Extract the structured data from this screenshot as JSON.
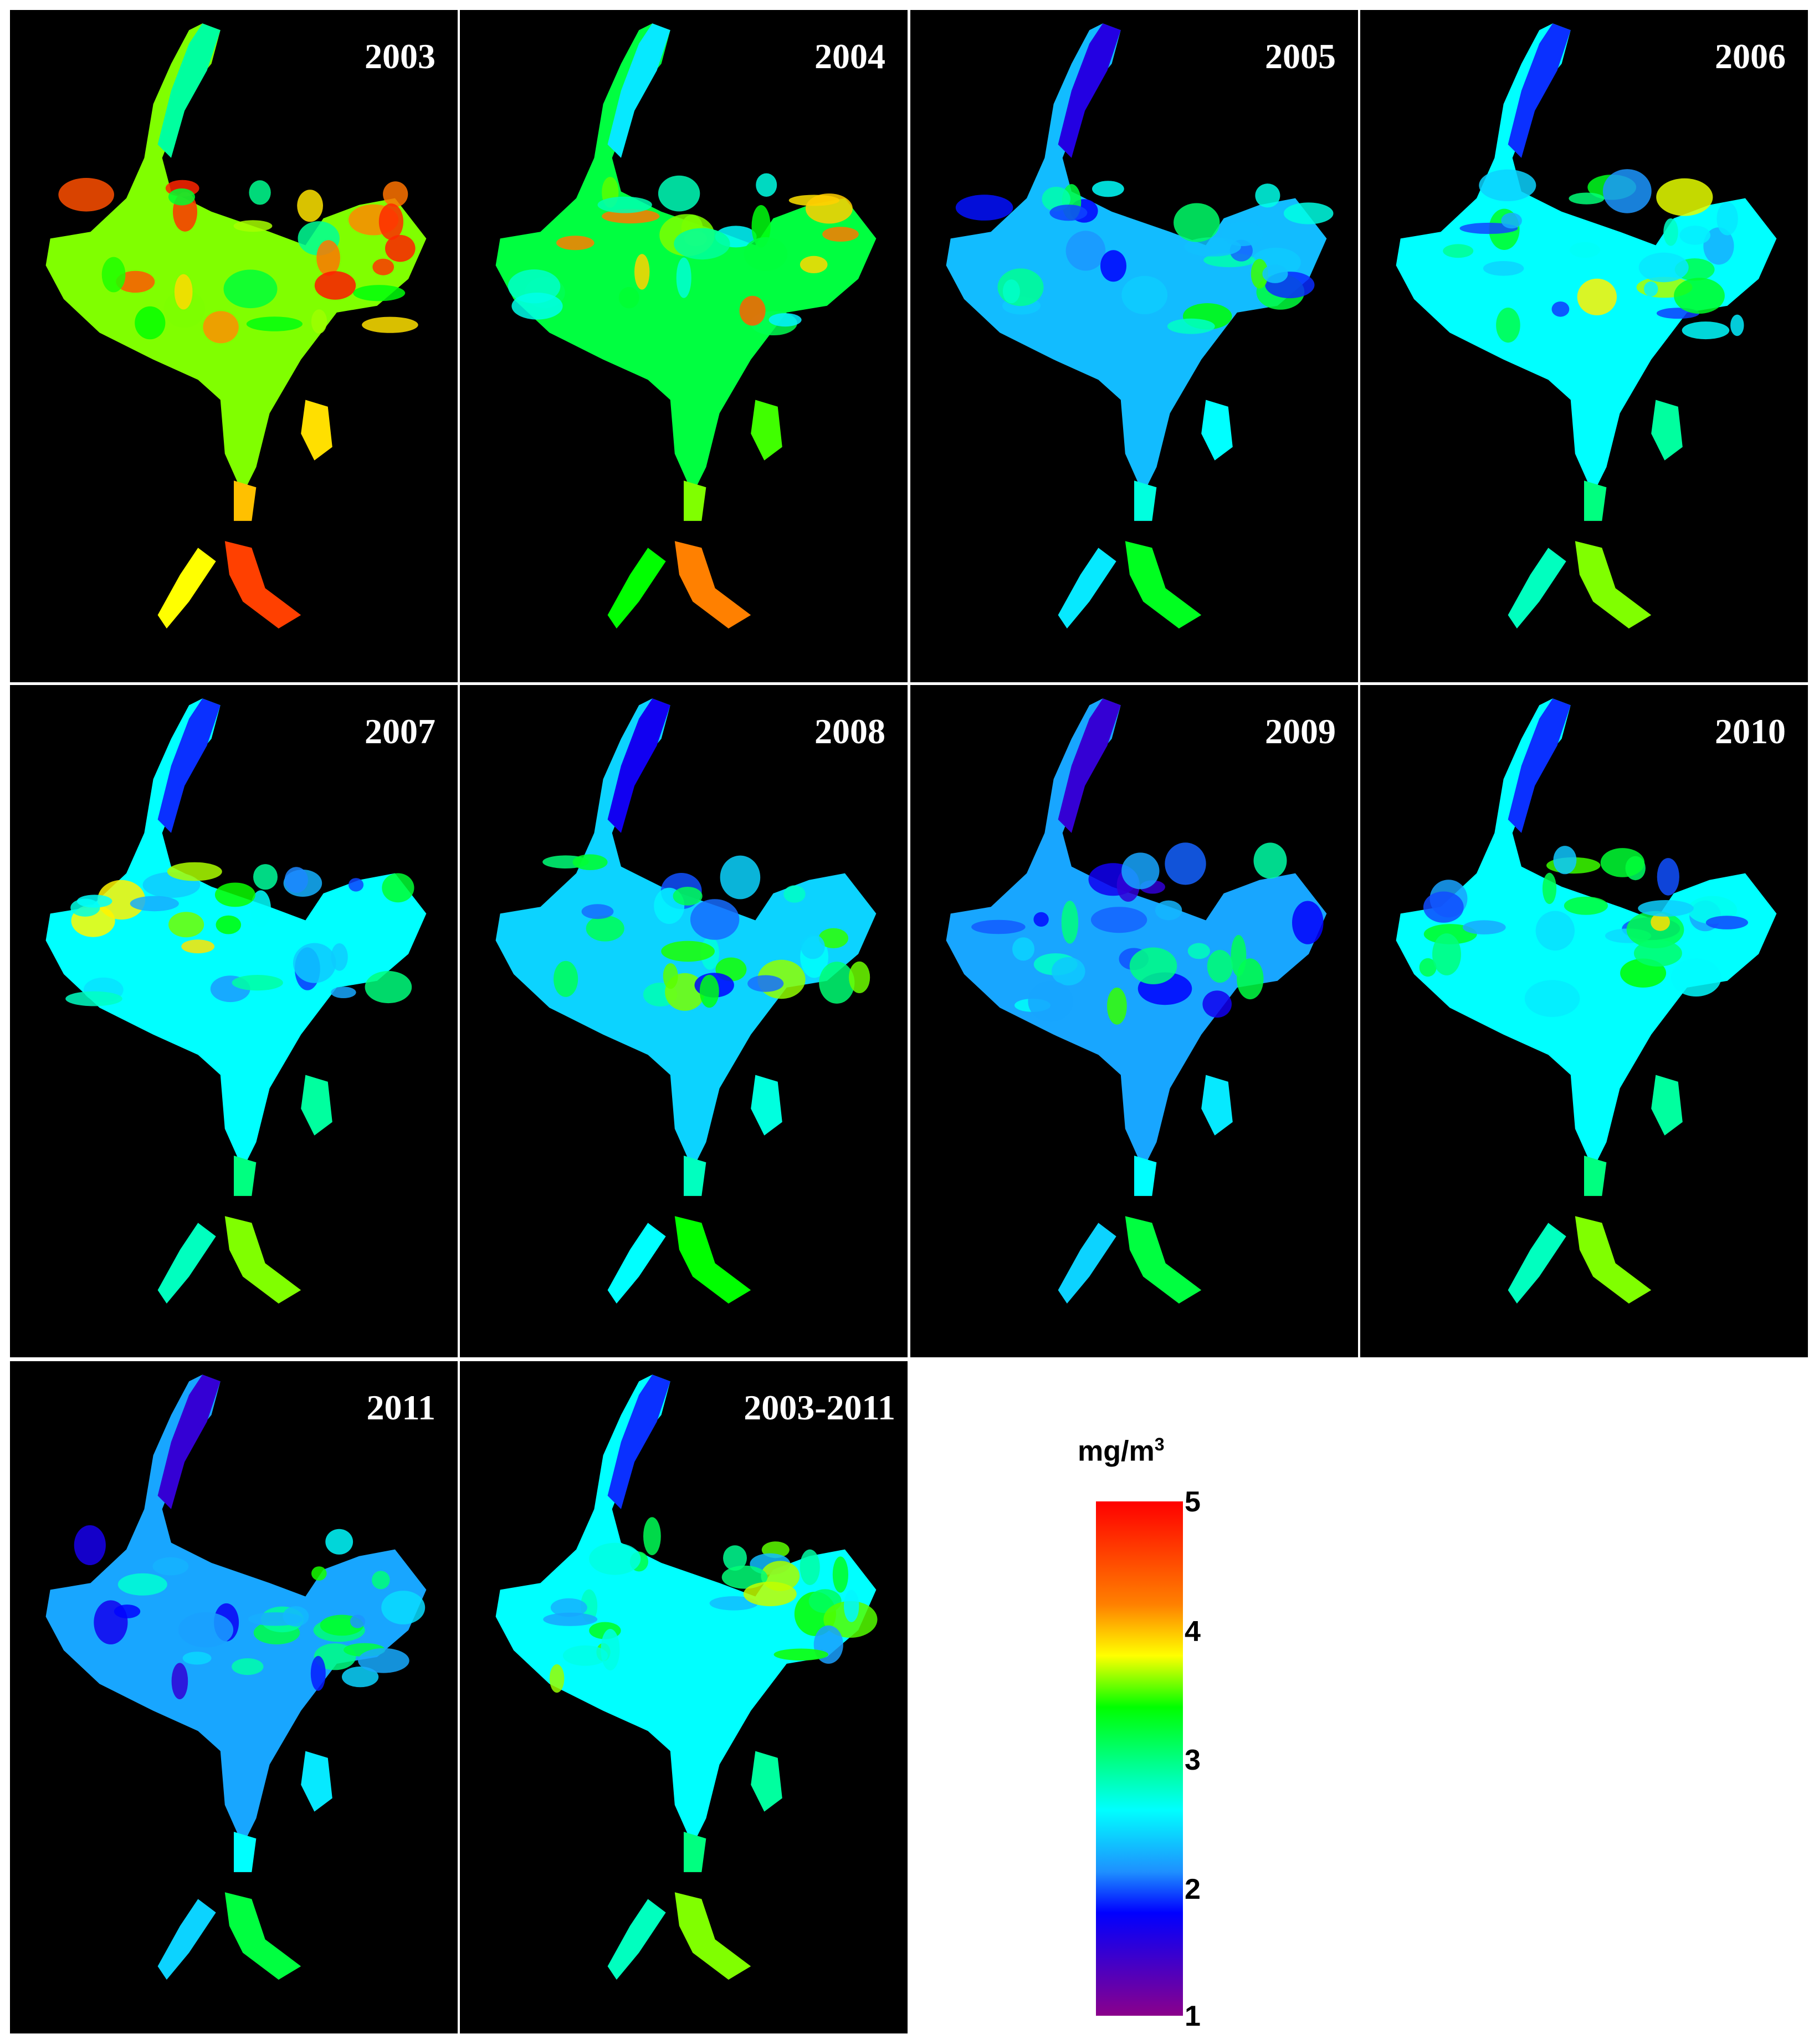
{
  "panels": [
    {
      "label": "2003",
      "mean_level": 3.6
    },
    {
      "label": "2004",
      "mean_level": 3.2
    },
    {
      "label": "2005",
      "mean_level": 2.3
    },
    {
      "label": "2006",
      "mean_level": 2.6
    },
    {
      "label": "2007",
      "mean_level": 2.6
    },
    {
      "label": "2008",
      "mean_level": 2.4
    },
    {
      "label": "2009",
      "mean_level": 2.2
    },
    {
      "label": "2010",
      "mean_level": 2.6
    },
    {
      "label": "2011",
      "mean_level": 2.2
    },
    {
      "label": "2003-2011",
      "mean_level": 2.6
    }
  ],
  "legend": {
    "unit": "mg/m",
    "unit_superscript": "3",
    "min": 1,
    "max": 5,
    "ticks": [
      "5",
      "4",
      "3",
      "2",
      "1"
    ],
    "colors": [
      "#ff0000",
      "#ff8c00",
      "#ffff00",
      "#00ff00",
      "#00ffff",
      "#1e90ff",
      "#0000ff",
      "#8b008b"
    ]
  }
}
